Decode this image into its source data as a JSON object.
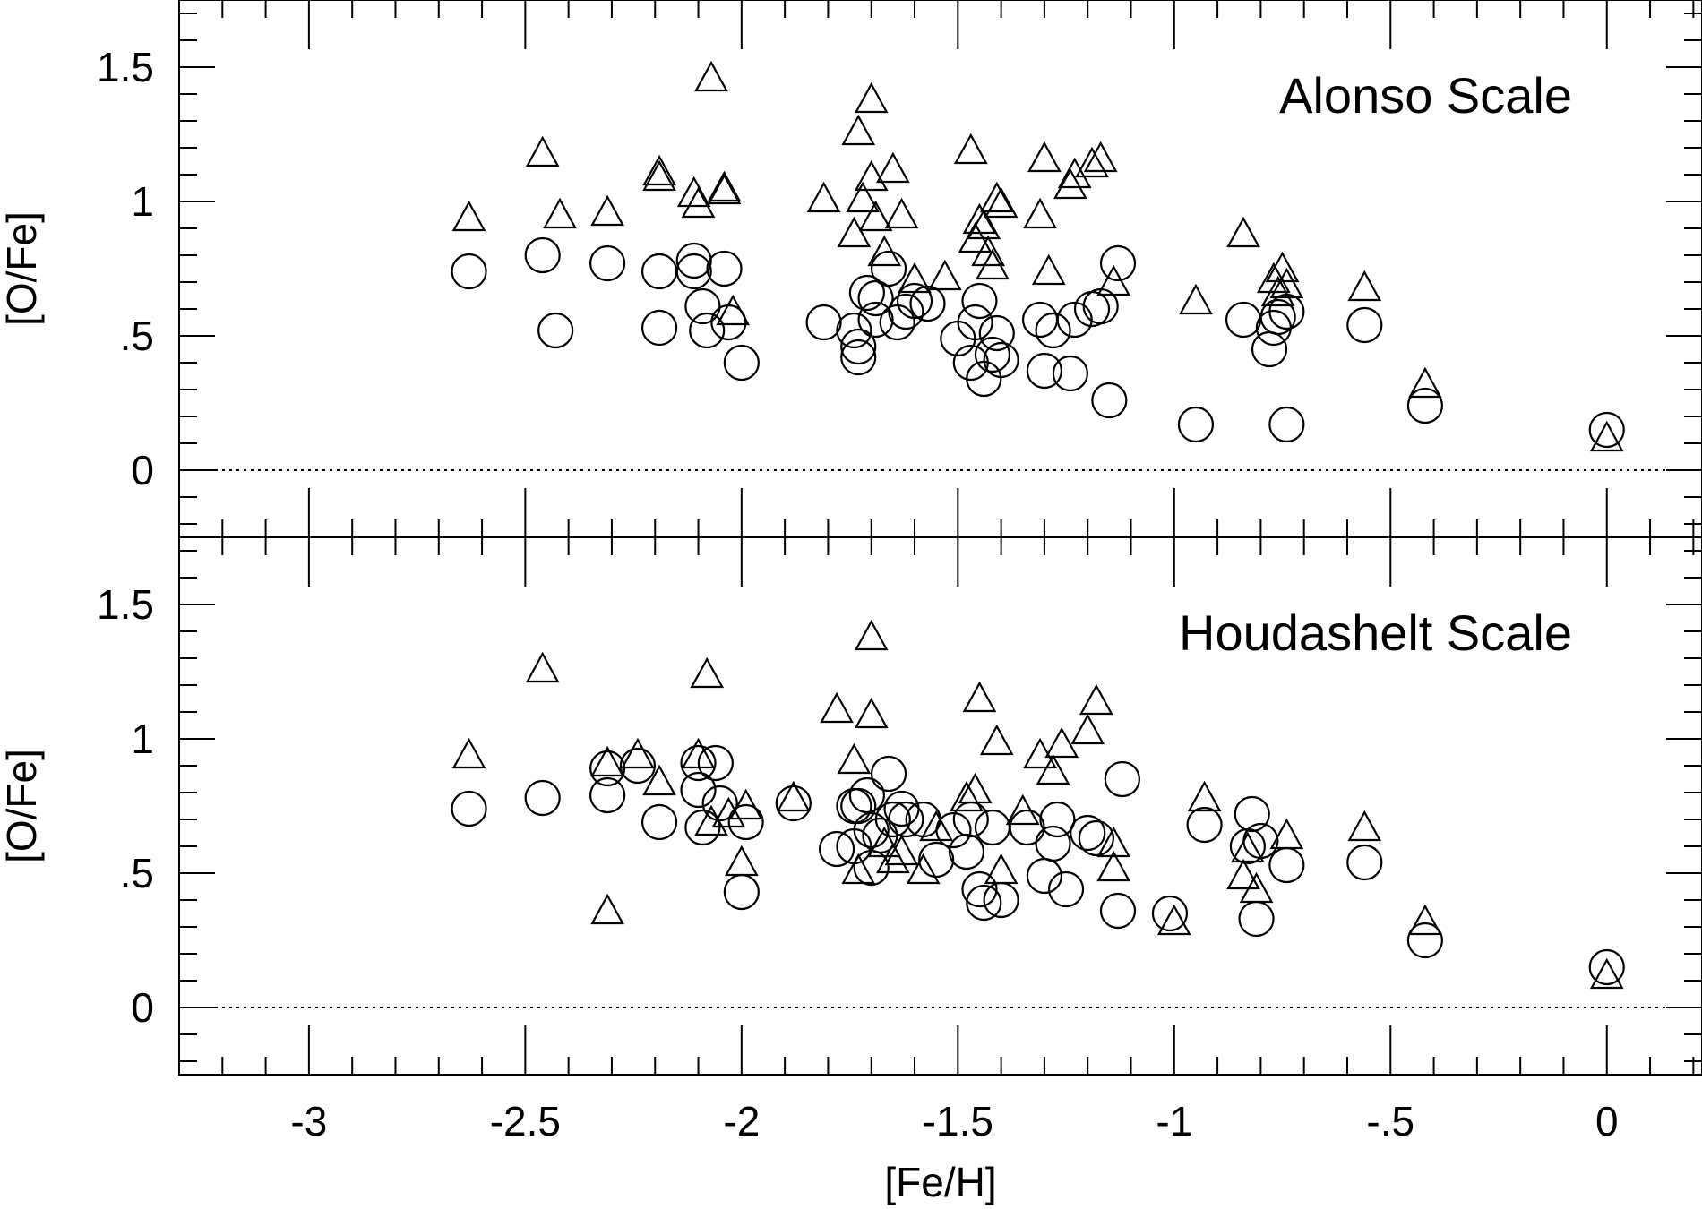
{
  "chart_data": [
    {
      "type": "scatter",
      "title": "Alonso Scale",
      "ylabel": "[O/Fe]",
      "xlim": [
        -3.3,
        0.22
      ],
      "ylim": [
        -0.25,
        1.75
      ],
      "yticks": [
        0,
        0.5,
        1,
        1.5
      ],
      "ytick_labels": [
        "0",
        ".5",
        "1",
        "1.5"
      ],
      "reference_line_y": 0,
      "series": [
        {
          "name": "circles",
          "marker": "circle",
          "points": [
            [
              -2.63,
              0.74
            ],
            [
              -2.46,
              0.8
            ],
            [
              -2.43,
              0.52
            ],
            [
              -2.31,
              0.77
            ],
            [
              -2.19,
              0.74
            ],
            [
              -2.19,
              0.53
            ],
            [
              -2.11,
              0.78
            ],
            [
              -2.11,
              0.74
            ],
            [
              -2.09,
              0.61
            ],
            [
              -2.08,
              0.52
            ],
            [
              -2.04,
              0.75
            ],
            [
              -2.03,
              0.55
            ],
            [
              -2.0,
              0.4
            ],
            [
              -1.81,
              0.55
            ],
            [
              -1.74,
              0.52
            ],
            [
              -1.73,
              0.46
            ],
            [
              -1.73,
              0.42
            ],
            [
              -1.71,
              0.66
            ],
            [
              -1.69,
              0.56
            ],
            [
              -1.69,
              0.64
            ],
            [
              -1.66,
              0.75
            ],
            [
              -1.64,
              0.55
            ],
            [
              -1.62,
              0.59
            ],
            [
              -1.6,
              0.63
            ],
            [
              -1.57,
              0.62
            ],
            [
              -1.5,
              0.49
            ],
            [
              -1.47,
              0.4
            ],
            [
              -1.46,
              0.55
            ],
            [
              -1.45,
              0.63
            ],
            [
              -1.44,
              0.34
            ],
            [
              -1.42,
              0.43
            ],
            [
              -1.41,
              0.51
            ],
            [
              -1.4,
              0.41
            ],
            [
              -1.31,
              0.56
            ],
            [
              -1.3,
              0.37
            ],
            [
              -1.28,
              0.52
            ],
            [
              -1.24,
              0.36
            ],
            [
              -1.23,
              0.56
            ],
            [
              -1.19,
              0.6
            ],
            [
              -1.17,
              0.61
            ],
            [
              -1.15,
              0.26
            ],
            [
              -1.13,
              0.77
            ],
            [
              -0.95,
              0.17
            ],
            [
              -0.84,
              0.56
            ],
            [
              -0.78,
              0.45
            ],
            [
              -0.77,
              0.53
            ],
            [
              -0.76,
              0.57
            ],
            [
              -0.74,
              0.17
            ],
            [
              -0.74,
              0.59
            ],
            [
              -0.42,
              0.24
            ],
            [
              -0.56,
              0.54
            ],
            [
              0.0,
              0.15
            ]
          ]
        },
        {
          "name": "triangles",
          "marker": "triangle",
          "points": [
            [
              -2.63,
              0.93
            ],
            [
              -2.46,
              1.17
            ],
            [
              -2.42,
              0.94
            ],
            [
              -2.31,
              0.95
            ],
            [
              -2.19,
              1.1
            ],
            [
              -2.19,
              1.08
            ],
            [
              -2.11,
              1.02
            ],
            [
              -2.1,
              0.98
            ],
            [
              -2.07,
              1.45
            ],
            [
              -2.04,
              1.04
            ],
            [
              -2.04,
              1.03
            ],
            [
              -2.02,
              0.58
            ],
            [
              -1.81,
              1.0
            ],
            [
              -1.74,
              0.87
            ],
            [
              -1.73,
              1.25
            ],
            [
              -1.72,
              1.0
            ],
            [
              -1.7,
              1.37
            ],
            [
              -1.7,
              1.08
            ],
            [
              -1.69,
              0.93
            ],
            [
              -1.67,
              0.8
            ],
            [
              -1.65,
              1.11
            ],
            [
              -1.63,
              0.94
            ],
            [
              -1.6,
              0.7
            ],
            [
              -1.53,
              0.71
            ],
            [
              -1.47,
              1.18
            ],
            [
              -1.46,
              0.85
            ],
            [
              -1.45,
              0.92
            ],
            [
              -1.44,
              0.9
            ],
            [
              -1.43,
              0.8
            ],
            [
              -1.42,
              0.75
            ],
            [
              -1.41,
              1.0
            ],
            [
              -1.4,
              0.98
            ],
            [
              -1.31,
              0.94
            ],
            [
              -1.3,
              1.15
            ],
            [
              -1.29,
              0.73
            ],
            [
              -1.24,
              1.05
            ],
            [
              -1.23,
              1.09
            ],
            [
              -1.19,
              1.13
            ],
            [
              -1.17,
              1.15
            ],
            [
              -1.14,
              0.69
            ],
            [
              -0.95,
              0.62
            ],
            [
              -0.84,
              0.87
            ],
            [
              -0.77,
              0.7
            ],
            [
              -0.76,
              0.65
            ],
            [
              -0.75,
              0.74
            ],
            [
              -0.74,
              0.68
            ],
            [
              -0.56,
              0.67
            ],
            [
              -0.42,
              0.31
            ],
            [
              0.0,
              0.11
            ]
          ]
        }
      ]
    },
    {
      "type": "scatter",
      "title": "Houdashelt Scale",
      "xlabel": "[Fe/H]",
      "ylabel": "[O/Fe]",
      "xlim": [
        -3.3,
        0.22
      ],
      "ylim": [
        -0.25,
        1.75
      ],
      "xticks": [
        -3,
        -2.5,
        -2,
        -1.5,
        -1,
        -0.5,
        0
      ],
      "xtick_labels": [
        "-3",
        "-2.5",
        "-2",
        "-1.5",
        "-1",
        "-.5",
        "0"
      ],
      "yticks": [
        0,
        0.5,
        1,
        1.5
      ],
      "ytick_labels": [
        "0",
        ".5",
        "1",
        "1.5"
      ],
      "reference_line_y": 0,
      "series": [
        {
          "name": "circles",
          "marker": "circle",
          "points": [
            [
              -2.63,
              0.74
            ],
            [
              -2.46,
              0.78
            ],
            [
              -2.31,
              0.79
            ],
            [
              -2.31,
              0.89
            ],
            [
              -2.24,
              0.9
            ],
            [
              -2.19,
              0.69
            ],
            [
              -2.1,
              0.91
            ],
            [
              -2.1,
              0.81
            ],
            [
              -2.09,
              0.67
            ],
            [
              -2.06,
              0.91
            ],
            [
              -2.05,
              0.76
            ],
            [
              -2.0,
              0.43
            ],
            [
              -1.99,
              0.69
            ],
            [
              -1.88,
              0.76
            ],
            [
              -1.78,
              0.59
            ],
            [
              -1.74,
              0.6
            ],
            [
              -1.74,
              0.75
            ],
            [
              -1.73,
              0.75
            ],
            [
              -1.71,
              0.79
            ],
            [
              -1.7,
              0.52
            ],
            [
              -1.7,
              0.66
            ],
            [
              -1.68,
              0.64
            ],
            [
              -1.66,
              0.87
            ],
            [
              -1.65,
              0.7
            ],
            [
              -1.63,
              0.74
            ],
            [
              -1.62,
              0.7
            ],
            [
              -1.58,
              0.7
            ],
            [
              -1.55,
              0.55
            ],
            [
              -1.51,
              0.66
            ],
            [
              -1.48,
              0.58
            ],
            [
              -1.47,
              0.7
            ],
            [
              -1.45,
              0.44
            ],
            [
              -1.44,
              0.39
            ],
            [
              -1.42,
              0.67
            ],
            [
              -1.4,
              0.4
            ],
            [
              -1.34,
              0.67
            ],
            [
              -1.3,
              0.49
            ],
            [
              -1.28,
              0.61
            ],
            [
              -1.27,
              0.7
            ],
            [
              -1.25,
              0.44
            ],
            [
              -1.2,
              0.65
            ],
            [
              -1.18,
              0.63
            ],
            [
              -1.13,
              0.36
            ],
            [
              -1.12,
              0.85
            ],
            [
              -1.01,
              0.35
            ],
            [
              -0.93,
              0.68
            ],
            [
              -0.83,
              0.6
            ],
            [
              -0.82,
              0.72
            ],
            [
              -0.81,
              0.33
            ],
            [
              -0.8,
              0.62
            ],
            [
              -0.74,
              0.53
            ],
            [
              -0.56,
              0.54
            ],
            [
              -0.42,
              0.25
            ],
            [
              0.0,
              0.15
            ]
          ]
        },
        {
          "name": "triangles",
          "marker": "triangle",
          "points": [
            [
              -2.63,
              0.93
            ],
            [
              -2.46,
              1.25
            ],
            [
              -2.31,
              0.35
            ],
            [
              -2.31,
              0.9
            ],
            [
              -2.24,
              0.93
            ],
            [
              -2.19,
              0.83
            ],
            [
              -2.1,
              0.93
            ],
            [
              -2.08,
              1.23
            ],
            [
              -2.07,
              0.68
            ],
            [
              -2.03,
              0.71
            ],
            [
              -2.0,
              0.53
            ],
            [
              -1.99,
              0.74
            ],
            [
              -1.88,
              0.77
            ],
            [
              -1.78,
              1.1
            ],
            [
              -1.74,
              0.91
            ],
            [
              -1.73,
              0.5
            ],
            [
              -1.7,
              1.37
            ],
            [
              -1.7,
              1.08
            ],
            [
              -1.67,
              0.6
            ],
            [
              -1.65,
              0.54
            ],
            [
              -1.63,
              0.57
            ],
            [
              -1.58,
              0.5
            ],
            [
              -1.55,
              0.66
            ],
            [
              -1.48,
              0.77
            ],
            [
              -1.46,
              0.8
            ],
            [
              -1.45,
              1.14
            ],
            [
              -1.41,
              0.98
            ],
            [
              -1.4,
              0.5
            ],
            [
              -1.35,
              0.72
            ],
            [
              -1.31,
              0.93
            ],
            [
              -1.28,
              0.87
            ],
            [
              -1.26,
              0.97
            ],
            [
              -1.2,
              1.02
            ],
            [
              -1.18,
              1.13
            ],
            [
              -1.14,
              0.6
            ],
            [
              -1.14,
              0.51
            ],
            [
              -1.0,
              0.31
            ],
            [
              -0.93,
              0.77
            ],
            [
              -0.84,
              0.48
            ],
            [
              -0.83,
              0.58
            ],
            [
              -0.81,
              0.43
            ],
            [
              -0.74,
              0.63
            ],
            [
              -0.56,
              0.66
            ],
            [
              -0.42,
              0.31
            ],
            [
              0.0,
              0.11
            ]
          ]
        }
      ]
    }
  ]
}
